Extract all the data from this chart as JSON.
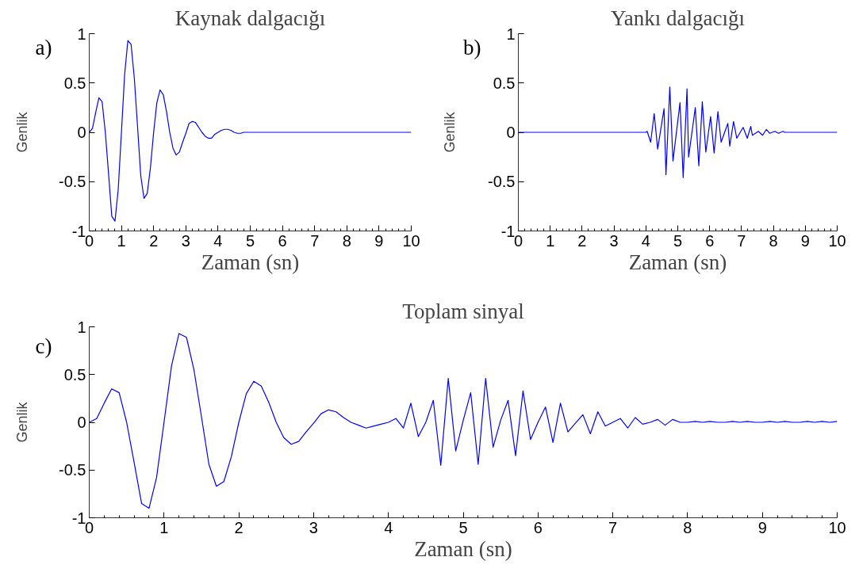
{
  "chart_data": [
    {
      "type": "line",
      "title": "Kaynak dalgacığı",
      "xlabel": "Zaman (sn)",
      "ylabel": "Genlik",
      "annotations": [
        "a)"
      ],
      "grid": false,
      "xlim": [
        0,
        10
      ],
      "ylim": [
        -1,
        1
      ],
      "xticks": [
        0,
        1,
        2,
        3,
        4,
        5,
        6,
        7,
        8,
        9,
        10
      ],
      "yticks": [
        -1,
        -0.5,
        0,
        0.5,
        1
      ],
      "series": [
        {
          "color": "#0000ff",
          "x": [
            0,
            0.1,
            0.2,
            0.3,
            0.4,
            0.5,
            0.6,
            0.7,
            0.8,
            0.9,
            1.0,
            1.1,
            1.2,
            1.3,
            1.4,
            1.5,
            1.6,
            1.7,
            1.8,
            1.9,
            2.0,
            2.1,
            2.2,
            2.3,
            2.4,
            2.5,
            2.6,
            2.7,
            2.8,
            2.9,
            3.0,
            3.1,
            3.2,
            3.3,
            3.4,
            3.5,
            3.6,
            3.7,
            3.8,
            3.9,
            4.0,
            4.1,
            4.2,
            4.3,
            4.4,
            4.5,
            4.6,
            4.7,
            4.8,
            4.9,
            10
          ],
          "values": [
            0,
            0.04,
            0.2,
            0.35,
            0.31,
            0.0,
            -0.42,
            -0.85,
            -0.9,
            -0.58,
            0.0,
            0.59,
            0.93,
            0.89,
            0.55,
            0.06,
            -0.44,
            -0.67,
            -0.62,
            -0.36,
            0.0,
            0.3,
            0.43,
            0.38,
            0.21,
            0.0,
            -0.16,
            -0.23,
            -0.2,
            -0.1,
            -0.01,
            0.09,
            0.11,
            0.1,
            0.05,
            0.0,
            -0.04,
            -0.06,
            -0.06,
            -0.02,
            0.0,
            0.02,
            0.03,
            0.03,
            0.02,
            0.0,
            -0.01,
            -0.01,
            0.0,
            0.0,
            0.0
          ]
        }
      ]
    },
    {
      "type": "line",
      "title": "Yankı dalgacığı",
      "xlabel": "Zaman (sn)",
      "ylabel": "Genlik",
      "annotations": [
        "b)"
      ],
      "grid": false,
      "xlim": [
        0,
        10
      ],
      "ylim": [
        -1,
        1
      ],
      "xticks": [
        0,
        1,
        2,
        3,
        4,
        5,
        6,
        7,
        8,
        9,
        10
      ],
      "yticks": [
        -1,
        -0.5,
        0,
        0.5,
        1
      ],
      "series": [
        {
          "color": "#0000ff",
          "x": [
            0,
            4.0,
            4.04,
            4.15,
            4.26,
            4.37,
            4.57,
            4.63,
            4.75,
            4.85,
            5.07,
            5.17,
            5.29,
            5.34,
            5.55,
            5.66,
            5.77,
            5.88,
            6.03,
            6.14,
            6.26,
            6.36,
            6.57,
            6.63,
            6.75,
            6.85,
            7.05,
            7.18,
            7.29,
            7.34,
            7.53,
            7.66,
            7.78,
            7.88,
            8.05,
            8.16,
            8.3,
            8.36,
            10
          ],
          "values": [
            0,
            0,
            0.01,
            -0.1,
            0.19,
            -0.17,
            0.24,
            -0.43,
            0.46,
            -0.29,
            0.3,
            -0.46,
            0.44,
            -0.25,
            0.25,
            -0.34,
            0.31,
            -0.2,
            0.16,
            -0.21,
            0.21,
            -0.1,
            0.09,
            -0.14,
            0.11,
            -0.06,
            0.05,
            -0.06,
            0.06,
            -0.03,
            0.01,
            -0.03,
            0.03,
            -0.01,
            0.01,
            -0.01,
            0.01,
            0,
            0
          ]
        }
      ]
    },
    {
      "type": "line",
      "title": "Toplam sinyal",
      "xlabel": "Zaman (sn)",
      "ylabel": "Genlik",
      "annotations": [
        "c)"
      ],
      "grid": false,
      "xlim": [
        0,
        10
      ],
      "ylim": [
        -1,
        1
      ],
      "xticks": [
        0,
        1,
        2,
        3,
        4,
        5,
        6,
        7,
        8,
        9,
        10
      ],
      "yticks": [
        -1,
        -0.5,
        0,
        0.5,
        1
      ],
      "series": [
        {
          "color": "#0000ff",
          "x": [
            0,
            0.1,
            0.2,
            0.3,
            0.4,
            0.5,
            0.6,
            0.7,
            0.8,
            0.9,
            1.0,
            1.1,
            1.2,
            1.3,
            1.4,
            1.5,
            1.6,
            1.7,
            1.8,
            1.9,
            2.0,
            2.1,
            2.2,
            2.3,
            2.4,
            2.5,
            2.6,
            2.7,
            2.8,
            2.9,
            3.0,
            3.1,
            3.2,
            3.3,
            3.4,
            3.5,
            3.6,
            3.7,
            3.8,
            3.9,
            4.0,
            4.1,
            4.2,
            4.3,
            4.4,
            4.5,
            4.6,
            4.7,
            4.8,
            4.9,
            5.0,
            5.1,
            5.2,
            5.3,
            5.4,
            5.5,
            5.6,
            5.7,
            5.8,
            5.9,
            6.0,
            6.1,
            6.2,
            6.3,
            6.4,
            6.5,
            6.6,
            6.7,
            6.8,
            6.9,
            7.0,
            7.1,
            7.2,
            7.3,
            7.4,
            7.5,
            7.6,
            7.7,
            7.8,
            7.9,
            8.0,
            8.1,
            8.2,
            8.3,
            8.4,
            8.5,
            8.6,
            8.7,
            8.8,
            8.9,
            9.0,
            9.1,
            9.2,
            9.3,
            9.4,
            9.5,
            9.6,
            9.7,
            9.8,
            9.9,
            10.0
          ],
          "values": [
            0,
            0.04,
            0.2,
            0.35,
            0.31,
            0.0,
            -0.42,
            -0.85,
            -0.9,
            -0.58,
            0.0,
            0.59,
            0.93,
            0.89,
            0.55,
            0.06,
            -0.44,
            -0.67,
            -0.62,
            -0.36,
            0.0,
            0.3,
            0.43,
            0.38,
            0.21,
            0.0,
            -0.16,
            -0.23,
            -0.2,
            -0.1,
            -0.01,
            0.09,
            0.13,
            0.11,
            0.05,
            0.0,
            -0.03,
            -0.06,
            -0.04,
            -0.02,
            0.0,
            0.04,
            -0.06,
            0.2,
            -0.15,
            0.0,
            0.23,
            -0.45,
            0.46,
            -0.3,
            0.02,
            0.31,
            -0.44,
            0.46,
            -0.26,
            0.02,
            0.23,
            -0.35,
            0.33,
            -0.18,
            0.0,
            0.16,
            -0.21,
            0.2,
            -0.1,
            -0.01,
            0.08,
            -0.12,
            0.11,
            -0.04,
            0.0,
            0.04,
            -0.06,
            0.05,
            -0.02,
            0.0,
            0.03,
            -0.03,
            0.03,
            0.0,
            0.0,
            0.01,
            0.0,
            0.01,
            0,
            0,
            0.01,
            0,
            0.01,
            0,
            0,
            0.01,
            0,
            0.01,
            0,
            0,
            0.01,
            0,
            0.01,
            0,
            0.01
          ]
        }
      ]
    }
  ]
}
